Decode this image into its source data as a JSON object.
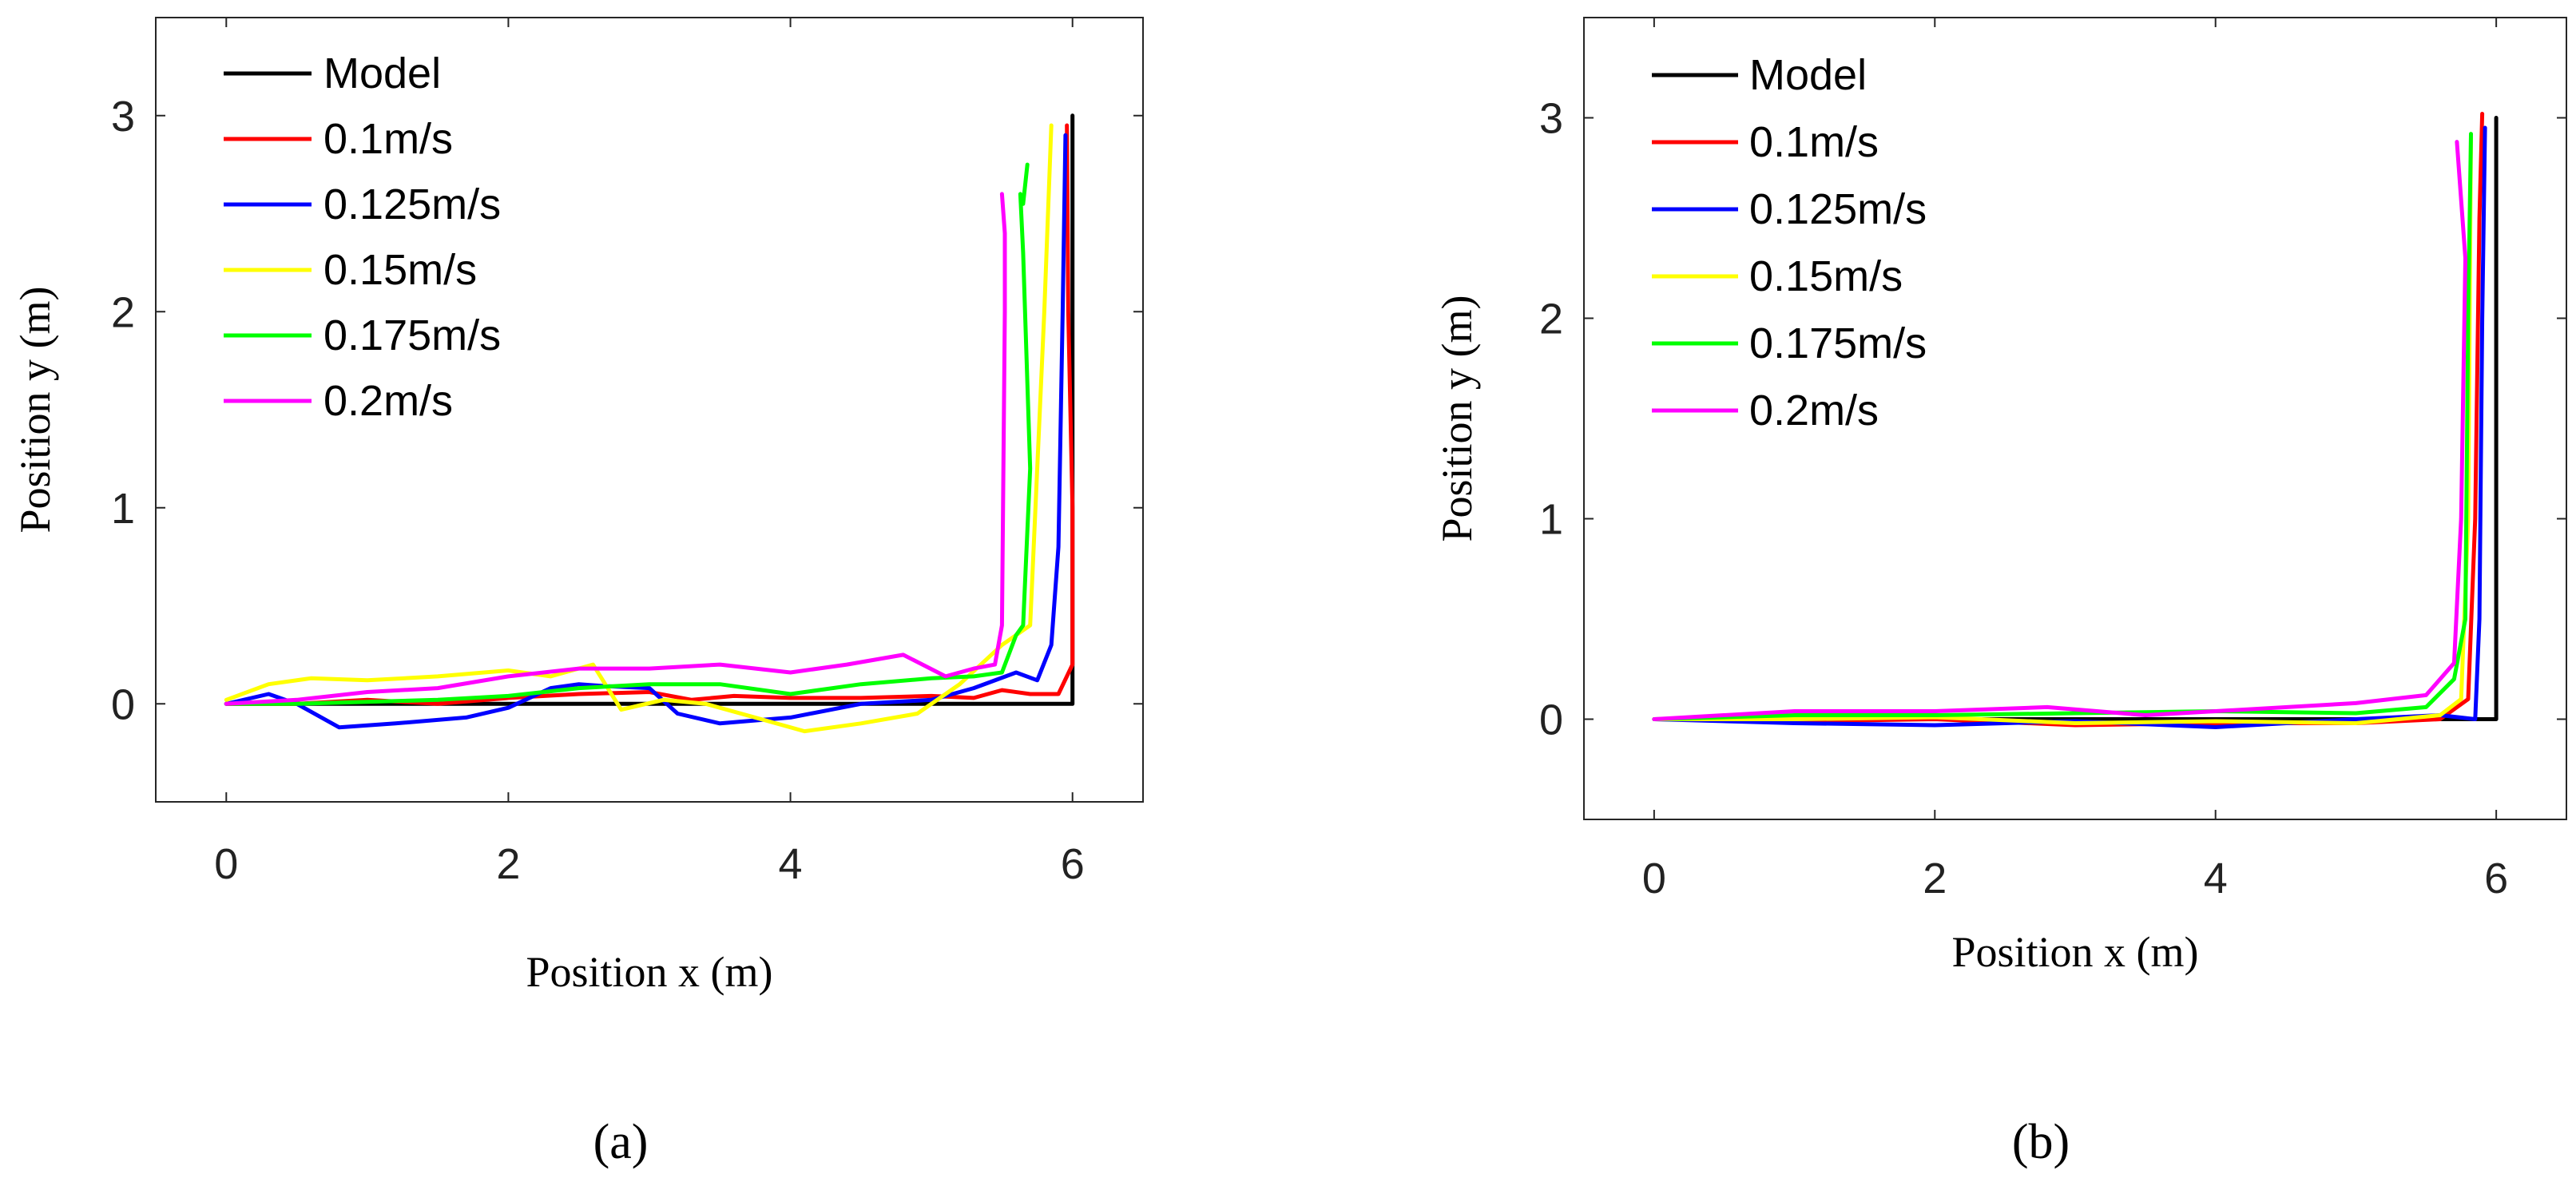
{
  "chart_data": [
    {
      "type": "line",
      "panel": "a",
      "caption": "(a)",
      "title": "",
      "xlabel": "Position x (m)",
      "ylabel": "Position y (m)",
      "xlim": [
        -0.5,
        6.5
      ],
      "ylim": [
        -0.5,
        3.5
      ],
      "xticks": [
        "0",
        "2",
        "4",
        "6"
      ],
      "yticks": [
        "0",
        "1",
        "2",
        "3"
      ],
      "legend_position": "top-left",
      "series": [
        {
          "name": "Model",
          "color": "#000000",
          "x": [
            0,
            6,
            6
          ],
          "y": [
            0,
            0,
            3
          ]
        },
        {
          "name": "0.1m/s",
          "color": "#ff0000",
          "x": [
            0,
            0.5,
            1.0,
            1.5,
            2.0,
            2.5,
            3.0,
            3.3,
            3.6,
            4.0,
            4.5,
            5.0,
            5.3,
            5.5,
            5.7,
            5.9,
            6.0,
            6.0,
            5.97,
            5.96
          ],
          "y": [
            0,
            0.0,
            0.02,
            0.0,
            0.03,
            0.05,
            0.06,
            0.02,
            0.04,
            0.03,
            0.03,
            0.04,
            0.03,
            0.07,
            0.05,
            0.05,
            0.2,
            1.0,
            2.0,
            2.95
          ]
        },
        {
          "name": "0.125m/s",
          "color": "#0000ff",
          "x": [
            0,
            0.3,
            0.5,
            0.8,
            1.2,
            1.7,
            2.0,
            2.3,
            2.5,
            2.7,
            3.0,
            3.2,
            3.5,
            4.0,
            4.5,
            5.0,
            5.3,
            5.6,
            5.75,
            5.85,
            5.9,
            5.93,
            5.95
          ],
          "y": [
            0,
            0.05,
            0.0,
            -0.12,
            -0.1,
            -0.07,
            -0.02,
            0.08,
            0.1,
            0.09,
            0.08,
            -0.05,
            -0.1,
            -0.07,
            0.0,
            0.02,
            0.08,
            0.16,
            0.12,
            0.3,
            0.8,
            2.0,
            2.9
          ]
        },
        {
          "name": "0.15m/s",
          "color": "#ffff00",
          "x": [
            0,
            0.3,
            0.6,
            1.0,
            1.5,
            2.0,
            2.3,
            2.6,
            2.8,
            3.1,
            3.4,
            3.8,
            4.1,
            4.5,
            4.9,
            5.2,
            5.5,
            5.7,
            5.8,
            5.85
          ],
          "y": [
            0.02,
            0.1,
            0.13,
            0.12,
            0.14,
            0.17,
            0.14,
            0.2,
            -0.03,
            0.02,
            0.0,
            -0.08,
            -0.14,
            -0.1,
            -0.05,
            0.1,
            0.3,
            0.4,
            2.0,
            2.95
          ]
        },
        {
          "name": "0.175m/s",
          "color": "#00ff00",
          "x": [
            0,
            0.5,
            1.0,
            1.5,
            2.0,
            2.5,
            3.0,
            3.5,
            4.0,
            4.5,
            5.0,
            5.3,
            5.5,
            5.6,
            5.65,
            5.7,
            5.65,
            5.63,
            5.65,
            5.68
          ],
          "y": [
            0,
            0.0,
            0.01,
            0.02,
            0.04,
            0.08,
            0.1,
            0.1,
            0.05,
            0.1,
            0.13,
            0.14,
            0.16,
            0.35,
            0.4,
            1.2,
            2.3,
            2.6,
            2.55,
            2.75
          ]
        },
        {
          "name": "0.2m/s",
          "color": "#ff00ff",
          "x": [
            0,
            0.5,
            1.0,
            1.5,
            2.0,
            2.5,
            3.0,
            3.5,
            4.0,
            4.4,
            4.8,
            5.1,
            5.3,
            5.45,
            5.5,
            5.52,
            5.52,
            5.5
          ],
          "y": [
            0,
            0.02,
            0.06,
            0.08,
            0.14,
            0.18,
            0.18,
            0.2,
            0.16,
            0.2,
            0.25,
            0.14,
            0.18,
            0.2,
            0.4,
            2.0,
            2.4,
            2.6
          ]
        }
      ]
    },
    {
      "type": "line",
      "panel": "b",
      "caption": "(b)",
      "title": "",
      "xlabel": "Position x (m)",
      "ylabel": "Position y (m)",
      "xlim": [
        -0.5,
        6.5
      ],
      "ylim": [
        -0.5,
        3.5
      ],
      "xticks": [
        "0",
        "2",
        "4",
        "6"
      ],
      "yticks": [
        "0",
        "1",
        "2",
        "3"
      ],
      "legend_position": "top-left",
      "series": [
        {
          "name": "Model",
          "color": "#000000",
          "x": [
            0,
            6,
            6
          ],
          "y": [
            0,
            0,
            3
          ]
        },
        {
          "name": "0.1m/s",
          "color": "#ff0000",
          "x": [
            0,
            1.0,
            2.0,
            3.0,
            4.0,
            5.0,
            5.6,
            5.8,
            5.85,
            5.88,
            5.9
          ],
          "y": [
            0,
            -0.01,
            0.0,
            -0.03,
            -0.02,
            -0.02,
            0.0,
            0.1,
            1.0,
            2.5,
            3.02
          ]
        },
        {
          "name": "0.125m/s",
          "color": "#0000ff",
          "x": [
            0,
            1.0,
            2.0,
            3.0,
            4.0,
            5.0,
            5.6,
            5.85,
            5.88,
            5.9,
            5.92
          ],
          "y": [
            0,
            -0.02,
            -0.03,
            -0.01,
            -0.04,
            0.0,
            0.02,
            0.0,
            0.5,
            2.0,
            2.95
          ]
        },
        {
          "name": "0.15m/s",
          "color": "#ffff00",
          "x": [
            0,
            1.0,
            2.0,
            3.0,
            4.0,
            5.0,
            5.6,
            5.75,
            5.8,
            5.82
          ],
          "y": [
            0,
            0.0,
            0.01,
            -0.02,
            -0.01,
            -0.02,
            0.02,
            0.1,
            1.0,
            2.9
          ]
        },
        {
          "name": "0.175m/s",
          "color": "#00ff00",
          "x": [
            0,
            1.0,
            2.0,
            3.0,
            4.0,
            5.0,
            5.5,
            5.7,
            5.78,
            5.8,
            5.82
          ],
          "y": [
            0,
            0.02,
            0.02,
            0.03,
            0.04,
            0.03,
            0.06,
            0.2,
            0.5,
            2.0,
            2.92
          ]
        },
        {
          "name": "0.2m/s",
          "color": "#ff00ff",
          "x": [
            0,
            1.0,
            2.0,
            2.8,
            3.5,
            4.0,
            5.0,
            5.5,
            5.7,
            5.75,
            5.78,
            5.72
          ],
          "y": [
            0,
            0.04,
            0.04,
            0.06,
            0.02,
            0.04,
            0.08,
            0.12,
            0.28,
            1.0,
            2.3,
            2.88
          ]
        }
      ]
    }
  ]
}
